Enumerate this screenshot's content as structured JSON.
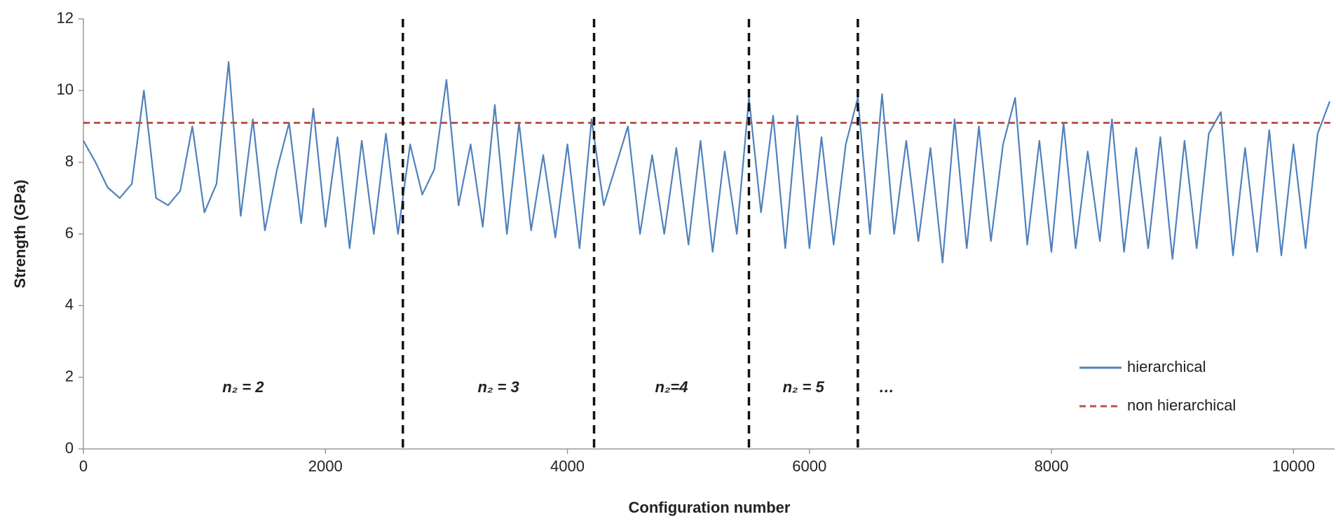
{
  "chart_data": {
    "type": "line",
    "xlabel": "Configuration number",
    "ylabel": "Strength (GPa)",
    "xlim": [
      0,
      10340
    ],
    "xticks": [
      0,
      2000,
      4000,
      6000,
      8000,
      10000
    ],
    "ylim": [
      0,
      12
    ],
    "yticks": [
      0,
      2,
      4,
      6,
      8,
      10,
      12
    ],
    "grid": false,
    "legend": "lower right",
    "dividers": [
      2640,
      4220,
      5500,
      6400
    ],
    "annotations": [
      "n₂ = 2",
      "n₂ = 3",
      "n₂=4",
      "n₂ = 5",
      "…"
    ],
    "series": [
      {
        "name": "hierarchical",
        "color": "#4f81bd",
        "dash": false,
        "x": [
          0,
          100,
          200,
          300,
          400,
          500,
          600,
          700,
          800,
          900,
          1000,
          1100,
          1200,
          1300,
          1400,
          1500,
          1600,
          1700,
          1800,
          1900,
          2000,
          2100,
          2200,
          2300,
          2400,
          2500,
          2600,
          2700,
          2800,
          2900,
          3000,
          3100,
          3200,
          3300,
          3400,
          3500,
          3600,
          3700,
          3800,
          3900,
          4000,
          4100,
          4200,
          4300,
          4400,
          4500,
          4600,
          4700,
          4800,
          4900,
          5000,
          5100,
          5200,
          5300,
          5400,
          5500,
          5600,
          5700,
          5800,
          5900,
          6000,
          6100,
          6200,
          6300,
          6400,
          6500,
          6600,
          6700,
          6800,
          6900,
          7000,
          7100,
          7200,
          7300,
          7400,
          7500,
          7600,
          7700,
          7800,
          7900,
          8000,
          8100,
          8200,
          8300,
          8400,
          8500,
          8600,
          8700,
          8800,
          8900,
          9000,
          9100,
          9200,
          9300,
          9400,
          9500,
          9600,
          9700,
          9800,
          9900,
          10000,
          10100,
          10200,
          10300
        ],
        "values": [
          8.6,
          8.0,
          7.3,
          7.0,
          7.4,
          10.0,
          7.0,
          6.8,
          7.2,
          9.0,
          6.6,
          7.4,
          10.8,
          6.5,
          9.2,
          6.1,
          7.8,
          9.1,
          6.3,
          9.5,
          6.2,
          8.7,
          5.6,
          8.6,
          6.0,
          8.8,
          6.0,
          8.5,
          7.1,
          7.8,
          10.3,
          6.8,
          8.5,
          6.2,
          9.6,
          6.0,
          9.1,
          6.1,
          8.2,
          5.9,
          8.5,
          5.6,
          9.2,
          6.8,
          7.9,
          9.0,
          6.0,
          8.2,
          6.0,
          8.4,
          5.7,
          8.6,
          5.5,
          8.3,
          6.0,
          9.8,
          6.6,
          9.3,
          5.6,
          9.3,
          5.6,
          8.7,
          5.7,
          8.5,
          9.8,
          6.0,
          9.9,
          6.0,
          8.6,
          5.8,
          8.4,
          5.2,
          9.2,
          5.6,
          9.0,
          5.8,
          8.5,
          9.8,
          5.7,
          8.6,
          5.5,
          9.1,
          5.6,
          8.3,
          5.8,
          9.2,
          5.5,
          8.4,
          5.6,
          8.7,
          5.3,
          8.6,
          5.6,
          8.8,
          9.4,
          5.4,
          8.4,
          5.5,
          8.9,
          5.4,
          8.5,
          5.6,
          8.8,
          9.7
        ]
      },
      {
        "name": "non hierarchical",
        "color": "#c0504d",
        "dash": true,
        "x": [
          0,
          10340
        ],
        "values": [
          9.1,
          9.1
        ]
      }
    ]
  }
}
